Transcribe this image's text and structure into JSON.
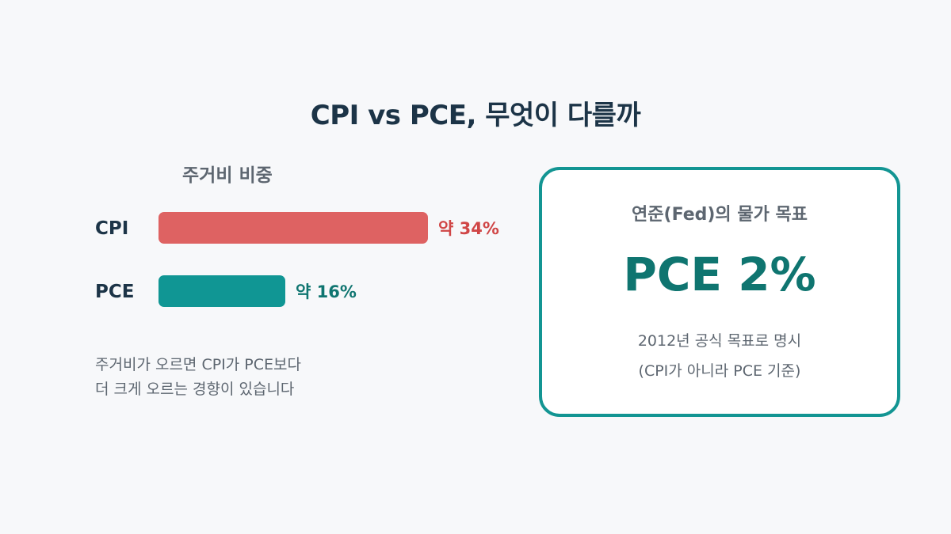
{
  "title": "CPI vs PCE, 무엇이 다를까",
  "chart_data": {
    "type": "bar",
    "orientation": "horizontal",
    "title": "주거비 비중",
    "categories": [
      "CPI",
      "PCE"
    ],
    "values": [
      34,
      16
    ],
    "value_labels": [
      "약 34%",
      "약 16%"
    ],
    "colors": [
      "#de6262",
      "#109694"
    ],
    "value_label_colors": [
      "#d04646",
      "#0f7570"
    ],
    "unit": "%"
  },
  "note": {
    "line1": "주거비가 오르면 CPI가 PCE보다",
    "line2": "더 크게 오르는 경향이 있습니다"
  },
  "card": {
    "heading": "연준(Fed)의 물가 목표",
    "value": "PCE 2%",
    "desc_line1": "2012년 공식 목표로 명시",
    "desc_line2": "(CPI가 아니라 PCE 기준)"
  }
}
